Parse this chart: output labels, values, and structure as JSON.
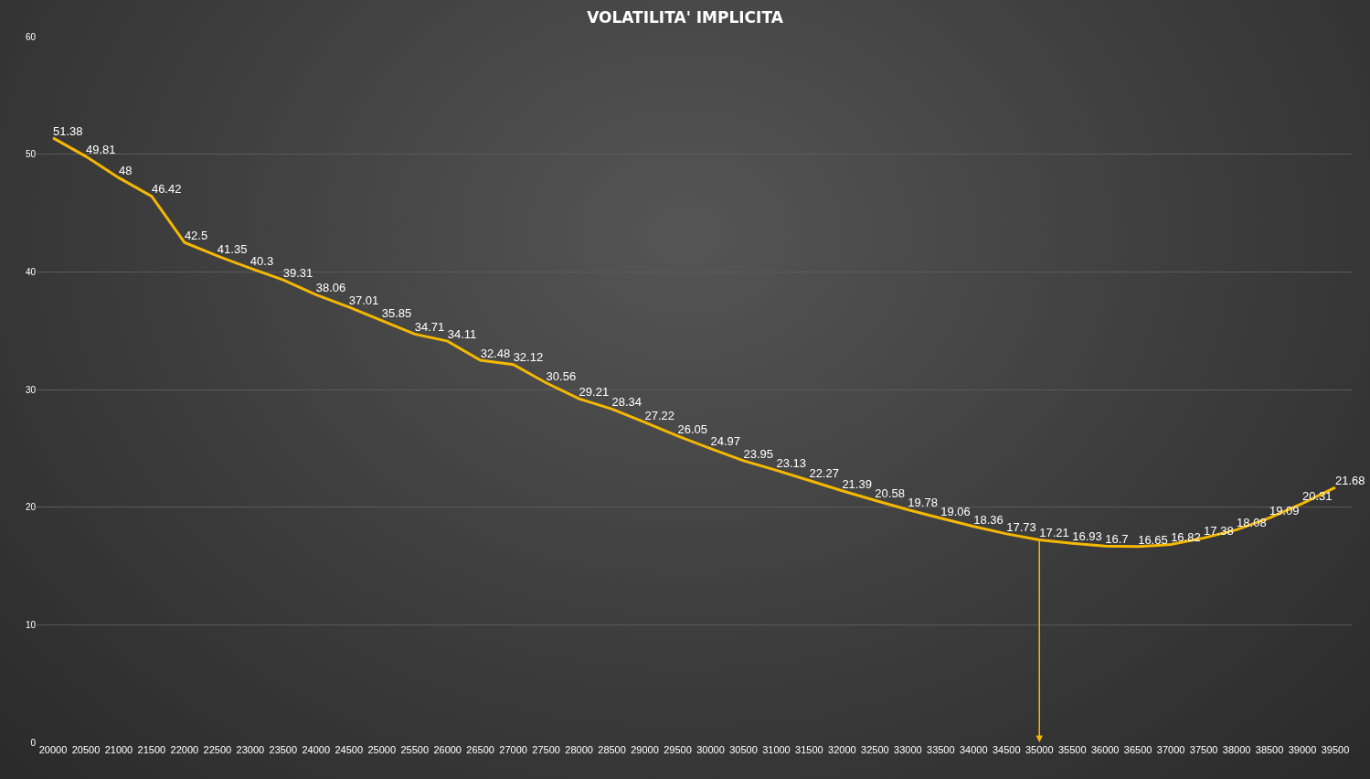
{
  "chart_data": {
    "type": "line",
    "title": "VOLATILITA' IMPLICITA",
    "categories": [
      "20000",
      "20500",
      "21000",
      "21500",
      "22000",
      "22500",
      "23000",
      "23500",
      "24000",
      "24500",
      "25000",
      "25500",
      "26000",
      "26500",
      "27000",
      "27500",
      "28000",
      "28500",
      "29000",
      "29500",
      "30000",
      "30500",
      "31000",
      "31500",
      "32000",
      "32500",
      "33000",
      "33500",
      "34000",
      "34500",
      "35000",
      "35500",
      "36000",
      "36500",
      "37000",
      "37500",
      "38000",
      "38500",
      "39000",
      "39500"
    ],
    "series": [
      {
        "color": "#f5b800",
        "values": [
          51.38,
          49.81,
          48,
          46.42,
          42.5,
          41.35,
          40.3,
          39.31,
          38.06,
          37.01,
          35.85,
          34.71,
          34.11,
          32.48,
          32.12,
          30.56,
          29.21,
          28.34,
          27.22,
          26.05,
          24.97,
          23.95,
          23.13,
          22.27,
          21.39,
          20.58,
          19.78,
          19.06,
          18.36,
          17.73,
          17.21,
          16.93,
          16.7,
          16.65,
          16.82,
          17.38,
          18.08,
          19.09,
          20.31,
          21.68
        ]
      }
    ],
    "ylim": [
      0,
      60
    ],
    "yticks": [
      0,
      10,
      20,
      30,
      40,
      50,
      60
    ],
    "grid": "y",
    "data_labels": true,
    "marker": "none",
    "line_style": "solid",
    "legend": false,
    "ref_lines": [
      {
        "axis": "x",
        "value": "35000",
        "color": "#f5b800"
      }
    ]
  }
}
